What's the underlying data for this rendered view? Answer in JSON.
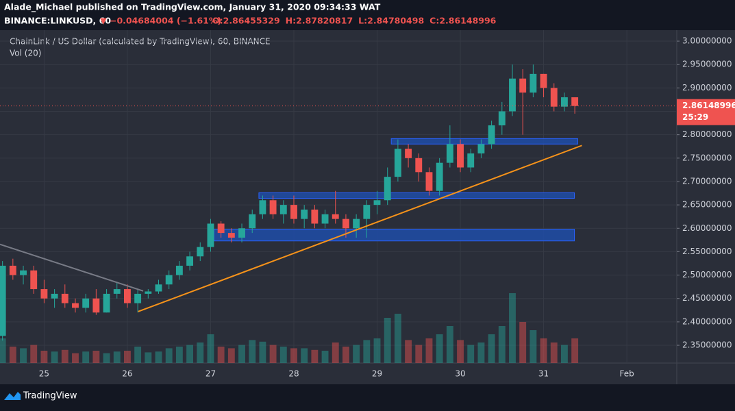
{
  "header": {
    "published": "Alade_Michael published on TradingView.com, January 31, 2020 09:34:33 WAT",
    "symbol": "BINANCE:LINKUSD, 60",
    "change": "▼ −0.04684004 (−1.61%)",
    "ohlc": [
      "O:2.86455329",
      "H:2.87820817",
      "L:2.84780498",
      "C:2.86148996"
    ]
  },
  "chart_data": {
    "type": "candlestick",
    "title": "ChainLink / US Dollar (calculated by TradingView), 60, BINANCE",
    "volume_label": "Vol (20)",
    "up_color": "#26a69a",
    "down_color": "#ef5350",
    "xlim": [
      24.47,
      32.6
    ],
    "ylim": [
      2.312,
      3.0235
    ],
    "vlim": [
      0,
      100
    ],
    "xticks": [
      25,
      26,
      27,
      28,
      29,
      30,
      31,
      {
        "value": 32,
        "label": "Feb"
      }
    ],
    "yticks": [
      {
        "value": 2.35,
        "label": "2.35000000"
      },
      {
        "value": 2.4,
        "label": "2.40000000"
      },
      {
        "value": 2.45,
        "label": "2.45000000"
      },
      {
        "value": 2.5,
        "label": "2.50000000"
      },
      {
        "value": 2.55,
        "label": "2.55000000"
      },
      {
        "value": 2.6,
        "label": "2.60000000"
      },
      {
        "value": 2.65,
        "label": "2.65000000"
      },
      {
        "value": 2.7,
        "label": "2.70000000"
      },
      {
        "value": 2.75,
        "label": "2.75000000"
      },
      {
        "value": 2.8,
        "label": "2.80000000"
      },
      {
        "value": 2.85,
        "label": "2.85000000"
      },
      {
        "value": 2.9,
        "label": "2.90000000"
      },
      {
        "value": 2.95,
        "label": "2.95000000"
      },
      {
        "value": 3.0,
        "label": "3.00000000"
      }
    ],
    "x": [
      24.5,
      24.625,
      24.75,
      24.875,
      25,
      25.125,
      25.25,
      25.375,
      25.5,
      25.625,
      25.75,
      25.875,
      26,
      26.125,
      26.25,
      26.375,
      26.5,
      26.625,
      26.75,
      26.875,
      27,
      27.125,
      27.25,
      27.375,
      27.5,
      27.625,
      27.75,
      27.875,
      28,
      28.125,
      28.25,
      28.375,
      28.5,
      28.625,
      28.75,
      28.875,
      29,
      29.125,
      29.25,
      29.375,
      29.5,
      29.625,
      29.75,
      29.875,
      30,
      30.125,
      30.25,
      30.375,
      30.5,
      30.625,
      30.75,
      30.875,
      31,
      31.125,
      31.25,
      31.375
    ],
    "open": [
      2.37,
      2.52,
      2.5,
      2.51,
      2.47,
      2.45,
      2.46,
      2.44,
      2.43,
      2.45,
      2.42,
      2.46,
      2.47,
      2.44,
      2.46,
      2.465,
      2.48,
      2.5,
      2.52,
      2.54,
      2.56,
      2.61,
      2.59,
      2.58,
      2.6,
      2.63,
      2.66,
      2.63,
      2.65,
      2.62,
      2.64,
      2.61,
      2.63,
      2.62,
      2.6,
      2.62,
      2.65,
      2.66,
      2.71,
      2.77,
      2.75,
      2.72,
      2.68,
      2.74,
      2.78,
      2.73,
      2.76,
      2.78,
      2.82,
      2.85,
      2.92,
      2.89,
      2.93,
      2.9,
      2.86,
      2.88
    ],
    "high": [
      2.53,
      2.535,
      2.52,
      2.52,
      2.49,
      2.47,
      2.48,
      2.45,
      2.46,
      2.47,
      2.47,
      2.485,
      2.48,
      2.47,
      2.47,
      2.49,
      2.51,
      2.53,
      2.55,
      2.57,
      2.62,
      2.615,
      2.6,
      2.61,
      2.64,
      2.67,
      2.67,
      2.66,
      2.67,
      2.65,
      2.65,
      2.64,
      2.68,
      2.63,
      2.63,
      2.66,
      2.68,
      2.73,
      2.79,
      2.78,
      2.76,
      2.73,
      2.75,
      2.82,
      2.79,
      2.77,
      2.79,
      2.83,
      2.87,
      2.95,
      2.94,
      2.95,
      2.93,
      2.91,
      2.89,
      2.88
    ],
    "low": [
      2.36,
      2.49,
      2.48,
      2.46,
      2.44,
      2.43,
      2.43,
      2.42,
      2.42,
      2.415,
      2.42,
      2.45,
      2.43,
      2.42,
      2.45,
      2.46,
      2.47,
      2.49,
      2.51,
      2.53,
      2.55,
      2.58,
      2.57,
      2.57,
      2.59,
      2.62,
      2.62,
      2.61,
      2.61,
      2.6,
      2.6,
      2.6,
      2.61,
      2.58,
      2.58,
      2.58,
      2.63,
      2.65,
      2.7,
      2.73,
      2.7,
      2.67,
      2.67,
      2.73,
      2.72,
      2.72,
      2.75,
      2.77,
      2.8,
      2.84,
      2.8,
      2.88,
      2.88,
      2.85,
      2.85,
      2.845
    ],
    "close": [
      2.52,
      2.5,
      2.51,
      2.47,
      2.45,
      2.46,
      2.44,
      2.43,
      2.45,
      2.42,
      2.46,
      2.47,
      2.44,
      2.46,
      2.465,
      2.48,
      2.5,
      2.52,
      2.54,
      2.56,
      2.61,
      2.59,
      2.58,
      2.6,
      2.63,
      2.66,
      2.63,
      2.65,
      2.62,
      2.64,
      2.61,
      2.63,
      2.62,
      2.6,
      2.62,
      2.65,
      2.66,
      2.71,
      2.77,
      2.75,
      2.72,
      2.68,
      2.74,
      2.78,
      2.73,
      2.76,
      2.78,
      2.82,
      2.85,
      2.92,
      2.89,
      2.93,
      2.9,
      2.86,
      2.88,
      2.8615
    ],
    "volume": [
      30,
      20,
      18,
      22,
      15,
      14,
      16,
      12,
      14,
      15,
      12,
      14,
      15,
      20,
      13,
      14,
      18,
      20,
      22,
      25,
      35,
      20,
      18,
      22,
      28,
      26,
      22,
      20,
      18,
      18,
      16,
      15,
      25,
      20,
      22,
      28,
      30,
      55,
      60,
      28,
      22,
      30,
      35,
      45,
      28,
      22,
      25,
      35,
      45,
      85,
      50,
      40,
      30,
      25,
      22,
      30
    ],
    "last_price": 2.86148996,
    "countdown": "25:29",
    "zones": [
      {
        "x": [
          29.17,
          31.41
        ],
        "y": [
          2.78,
          2.7916
        ]
      },
      {
        "x": [
          27.58,
          31.37
        ],
        "y": [
          2.664,
          2.676
        ]
      },
      {
        "x": [
          27.04,
          31.37
        ],
        "y": [
          2.573,
          2.598
        ]
      }
    ],
    "trendlines": [
      {
        "x": [
          26.13,
          31.46
        ],
        "y": [
          2.422,
          2.777
        ],
        "color": "#f7931a"
      },
      {
        "x": [
          24.47,
          26.19
        ],
        "y": [
          2.5657,
          2.466
        ],
        "color": "#787b86"
      }
    ]
  },
  "footer": {
    "brand": "TradingView"
  }
}
